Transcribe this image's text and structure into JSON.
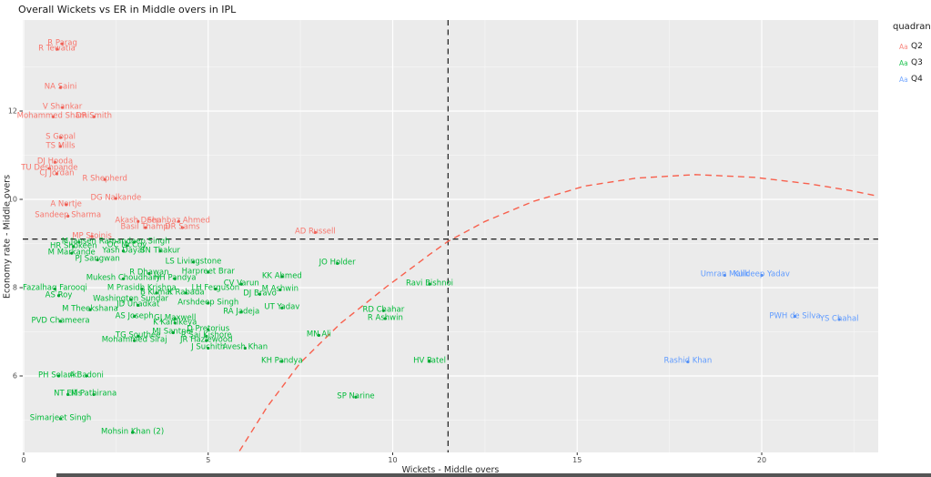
{
  "title": "Overall Wickets vs ER in Middle overs in IPL",
  "legend": {
    "title": "quadrant",
    "symbol": "Aa",
    "items": [
      {
        "label": "Q2",
        "color": "#F8766D"
      },
      {
        "label": "Q3",
        "color": "#00BA38"
      },
      {
        "label": "Q4",
        "color": "#619CFF"
      }
    ]
  },
  "chart_data": {
    "type": "scatter",
    "title": "Overall Wickets vs ER in Middle overs in IPL",
    "xlabel": "Wickets - Middle overs",
    "ylabel": "Economy rate - Middle overs",
    "x_ticks": [
      0,
      5,
      10,
      15,
      20
    ],
    "y_ticks": [
      6,
      8,
      10,
      12
    ],
    "x_minor_ticks": [
      2.5,
      7.5,
      12.5,
      17.5,
      22.5
    ],
    "y_minor_ticks": [
      5,
      7,
      9,
      11,
      13
    ],
    "xlim": [
      -0.03,
      23.2
    ],
    "ylim": [
      4.24,
      14.06
    ],
    "grid": true,
    "panel_background": "#EBEBEB",
    "legend_position": "right",
    "reference_lines": {
      "hline_economy_rate": 9.1,
      "vline_wickets": 11.5,
      "style": "dashed",
      "color": "#1b1b1b"
    },
    "trend_curve": {
      "style": "dashed",
      "color": "#F8604D",
      "points": [
        [
          5.85,
          4.3
        ],
        [
          6.6,
          5.3
        ],
        [
          7.5,
          6.3
        ],
        [
          8.6,
          7.2
        ],
        [
          9.8,
          8.0
        ],
        [
          11.0,
          8.75
        ],
        [
          11.5,
          9.05
        ],
        [
          12.5,
          9.5
        ],
        [
          13.8,
          9.95
        ],
        [
          15.2,
          10.3
        ],
        [
          16.6,
          10.48
        ],
        [
          18.2,
          10.56
        ],
        [
          19.8,
          10.5
        ],
        [
          21.3,
          10.35
        ],
        [
          22.4,
          10.2
        ],
        [
          23.1,
          10.08
        ]
      ]
    },
    "series": [
      {
        "name": "Q2",
        "text_color": "#F8766D",
        "dot_color": "#e8564b",
        "points": [
          {
            "name": "R Parag",
            "x": 1.05,
            "y": 13.52
          },
          {
            "name": "R Tewatia",
            "x": 0.9,
            "y": 13.4
          },
          {
            "name": "NA Saini",
            "x": 1.0,
            "y": 12.53
          },
          {
            "name": "V Shankar",
            "x": 1.05,
            "y": 12.08
          },
          {
            "name": "Mohammed Shami",
            "x": 0.8,
            "y": 11.87
          },
          {
            "name": "DR Smith",
            "x": 1.9,
            "y": 11.87
          },
          {
            "name": "S Gopal",
            "x": 1.0,
            "y": 11.4
          },
          {
            "name": "TS Mills",
            "x": 1.0,
            "y": 11.2
          },
          {
            "name": "DJ Hooda",
            "x": 0.85,
            "y": 10.84
          },
          {
            "name": "TU Deshpande",
            "x": 0.7,
            "y": 10.7
          },
          {
            "name": "CJ Jordan",
            "x": 0.9,
            "y": 10.58
          },
          {
            "name": "R Shepherd",
            "x": 2.2,
            "y": 10.45
          },
          {
            "name": "DG Nalkande",
            "x": 2.5,
            "y": 10.02
          },
          {
            "name": "A Nortje",
            "x": 1.15,
            "y": 9.88
          },
          {
            "name": "Sandeep Sharma",
            "x": 1.2,
            "y": 9.62
          },
          {
            "name": "Akash Deep",
            "x": 3.1,
            "y": 9.5
          },
          {
            "name": "Shahbaz Ahmed",
            "x": 4.2,
            "y": 9.5
          },
          {
            "name": "Basil Thampi",
            "x": 3.3,
            "y": 9.36
          },
          {
            "name": "DR Sams",
            "x": 4.3,
            "y": 9.36
          },
          {
            "name": "MP Stoinis",
            "x": 1.85,
            "y": 9.16
          },
          {
            "name": "AD Russell",
            "x": 7.9,
            "y": 9.25
          }
        ]
      },
      {
        "name": "Q3",
        "text_color": "#00BA38",
        "dot_color": "#009e30",
        "points": [
          {
            "name": "M Jansen",
            "x": 1.5,
            "y": 9.03
          },
          {
            "name": "Ramandeep Singh",
            "x": 3.0,
            "y": 9.03
          },
          {
            "name": "HR Shokeen",
            "x": 1.35,
            "y": 8.93
          },
          {
            "name": "OC McCoy",
            "x": 2.8,
            "y": 8.95
          },
          {
            "name": "Yash Dayal",
            "x": 2.7,
            "y": 8.83
          },
          {
            "name": "SN Thakur",
            "x": 3.7,
            "y": 8.83
          },
          {
            "name": "M Markande",
            "x": 1.3,
            "y": 8.78
          },
          {
            "name": "PJ Sangwan",
            "x": 2.0,
            "y": 8.63
          },
          {
            "name": "LS Livingstone",
            "x": 4.6,
            "y": 8.58
          },
          {
            "name": "JO Holder",
            "x": 8.5,
            "y": 8.55
          },
          {
            "name": "Harpreet Brar",
            "x": 5.0,
            "y": 8.35
          },
          {
            "name": "Mukesh Choudhary",
            "x": 2.7,
            "y": 8.2
          },
          {
            "name": "R Dhawan",
            "x": 3.4,
            "y": 8.32
          },
          {
            "name": "HH Pandya",
            "x": 4.1,
            "y": 8.2
          },
          {
            "name": "KK Ahmed",
            "x": 7.0,
            "y": 8.25
          },
          {
            "name": "CV Varun",
            "x": 5.9,
            "y": 8.08
          },
          {
            "name": "M Ashwin",
            "x": 6.95,
            "y": 7.95
          },
          {
            "name": "Fazalhaq Farooqi",
            "x": 0.85,
            "y": 7.97
          },
          {
            "name": "M Prasidh Krishna",
            "x": 3.2,
            "y": 7.97
          },
          {
            "name": "LH Ferguson",
            "x": 5.2,
            "y": 7.97
          },
          {
            "name": "Ravi Bishnoi",
            "x": 11.0,
            "y": 8.08
          },
          {
            "name": "AS Roy",
            "x": 0.95,
            "y": 7.82
          },
          {
            "name": "Washington Sundar",
            "x": 2.9,
            "y": 7.73
          },
          {
            "name": "B Kumar",
            "x": 3.6,
            "y": 7.88
          },
          {
            "name": "K Rabada",
            "x": 4.4,
            "y": 7.88
          },
          {
            "name": "DJ Bravo",
            "x": 6.4,
            "y": 7.85
          },
          {
            "name": "JD Unadkat",
            "x": 3.1,
            "y": 7.6
          },
          {
            "name": "Arshdeep Singh",
            "x": 5.0,
            "y": 7.65
          },
          {
            "name": "M Theekshana",
            "x": 1.8,
            "y": 7.5
          },
          {
            "name": "AS Joseph",
            "x": 3.0,
            "y": 7.35
          },
          {
            "name": "GJ Maxwell",
            "x": 4.1,
            "y": 7.3
          },
          {
            "name": "K Kartikeya",
            "x": 4.1,
            "y": 7.2
          },
          {
            "name": "RA Jadeja",
            "x": 5.9,
            "y": 7.45
          },
          {
            "name": "UT Yadav",
            "x": 7.0,
            "y": 7.54
          },
          {
            "name": "PVD Chameera",
            "x": 1.0,
            "y": 7.24
          },
          {
            "name": "RD Chahar",
            "x": 9.75,
            "y": 7.48
          },
          {
            "name": "R Ashwin",
            "x": 9.8,
            "y": 7.3
          },
          {
            "name": "MJ Santner",
            "x": 4.05,
            "y": 6.98
          },
          {
            "name": "D Pretorius",
            "x": 5.0,
            "y": 7.05
          },
          {
            "name": "R Sai Kishore",
            "x": 4.95,
            "y": 6.9
          },
          {
            "name": "TG Southee",
            "x": 3.1,
            "y": 6.9
          },
          {
            "name": "Mohammed Siraj",
            "x": 3.0,
            "y": 6.8
          },
          {
            "name": "JR Hazlewood",
            "x": 4.95,
            "y": 6.8
          },
          {
            "name": "MN Ali",
            "x": 8.0,
            "y": 6.92
          },
          {
            "name": "J Suchith",
            "x": 5.0,
            "y": 6.63
          },
          {
            "name": "Avesh Khan",
            "x": 6.0,
            "y": 6.63
          },
          {
            "name": "KH Pandya",
            "x": 7.0,
            "y": 6.33
          },
          {
            "name": "HV Patel",
            "x": 11.0,
            "y": 6.33
          },
          {
            "name": "PH Solanki",
            "x": 0.95,
            "y": 6.0
          },
          {
            "name": "A Badoni",
            "x": 1.7,
            "y": 6.0
          },
          {
            "name": "NT Ellis",
            "x": 1.2,
            "y": 5.58
          },
          {
            "name": "M Pathirana",
            "x": 1.9,
            "y": 5.58
          },
          {
            "name": "SP Narine",
            "x": 9.0,
            "y": 5.52
          },
          {
            "name": "Simarjeet Singh",
            "x": 1.0,
            "y": 5.03
          },
          {
            "name": "Mohsin Khan (2)",
            "x": 2.95,
            "y": 4.72
          }
        ]
      },
      {
        "name": "Q4",
        "text_color": "#619CFF",
        "dot_color": "#4f8af0",
        "points": [
          {
            "name": "Umran Malik",
            "x": 19.0,
            "y": 8.28
          },
          {
            "name": "Kuldeep Yadav",
            "x": 20.0,
            "y": 8.28
          },
          {
            "name": "PWH de Silva",
            "x": 20.9,
            "y": 7.35
          },
          {
            "name": "YS Chahal",
            "x": 22.1,
            "y": 7.28
          },
          {
            "name": "Rashid Khan",
            "x": 18.0,
            "y": 6.32
          }
        ]
      }
    ]
  }
}
